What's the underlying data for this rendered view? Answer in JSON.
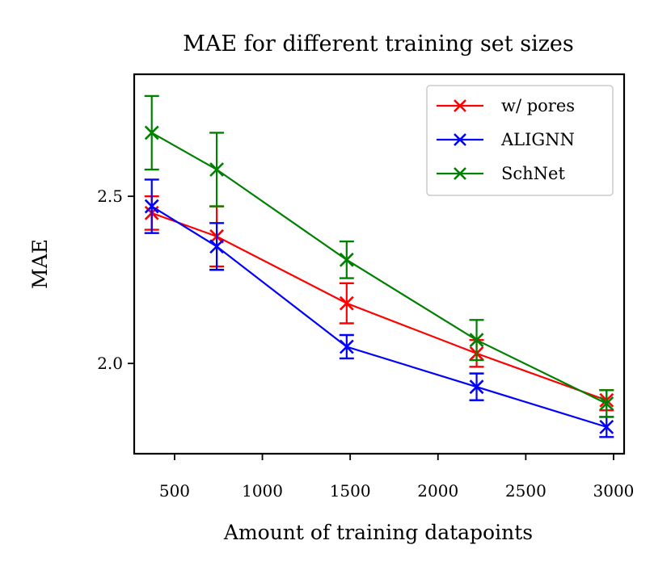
{
  "chart_data": {
    "type": "line",
    "title": "MAE for different training set sizes",
    "xlabel": "Amount of training datapoints",
    "ylabel": "MAE",
    "xlim": [
      270,
      3060
    ],
    "ylim": [
      1.73,
      2.865
    ],
    "xticks": [
      500,
      1000,
      1500,
      2000,
      2500,
      3000
    ],
    "xtick_labels": [
      "500",
      "1000",
      "1500",
      "2000",
      "2500",
      "3000"
    ],
    "yticks": [
      2.0,
      2.5
    ],
    "ytick_labels": [
      "2.0",
      "2.5"
    ],
    "grid": false,
    "legend_position": "top-right",
    "x": [
      370,
      740,
      1480,
      2220,
      2960
    ],
    "series": [
      {
        "name": "w/ pores",
        "color": "#ff0000",
        "marker": "x",
        "values": [
          2.45,
          2.38,
          2.18,
          2.03,
          1.89
        ],
        "error": [
          0.05,
          0.09,
          0.06,
          0.04,
          0.03
        ]
      },
      {
        "name": "ALIGNN",
        "color": "#0000ff",
        "marker": "x",
        "values": [
          2.47,
          2.35,
          2.05,
          1.93,
          1.81
        ],
        "error": [
          0.08,
          0.07,
          0.035,
          0.04,
          0.03
        ]
      },
      {
        "name": "SchNet",
        "color": "#008000",
        "marker": "x",
        "values": [
          2.69,
          2.58,
          2.31,
          2.07,
          1.88
        ],
        "error": [
          0.11,
          0.11,
          0.055,
          0.06,
          0.04
        ]
      }
    ]
  }
}
